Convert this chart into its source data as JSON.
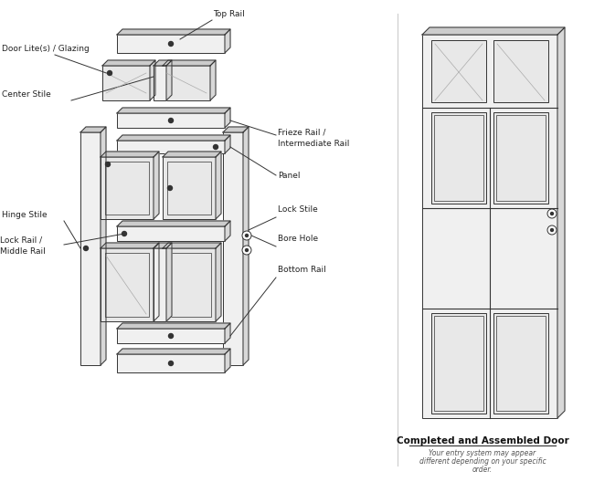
{
  "bg_color": "#ffffff",
  "line_color": "#333333",
  "fill_color": "#f0f0f0",
  "dark_fill": "#cccccc",
  "glass_fill": "#e8e8e8",
  "side_fill": "#d8d8d8",
  "labels": {
    "top_rail": "Top Rail",
    "door_lites": "Door Lite(s) / Glazing",
    "center_stile": "Center Stile",
    "frieze_rail": "Frieze Rail /\nIntermediate Rail",
    "panel": "Panel",
    "hinge_stile": "Hinge Stile",
    "lock_stile": "Lock Stile",
    "lock_rail": "Lock Rail /\nMiddle Rail",
    "bore_hole": "Bore Hole",
    "bottom_rail": "Bottom Rail",
    "assembled_title": "Completed and Assembled Door",
    "assembled_sub1": "Your entry system may appear",
    "assembled_sub2": "different depending on your specific",
    "assembled_sub3": "order."
  }
}
